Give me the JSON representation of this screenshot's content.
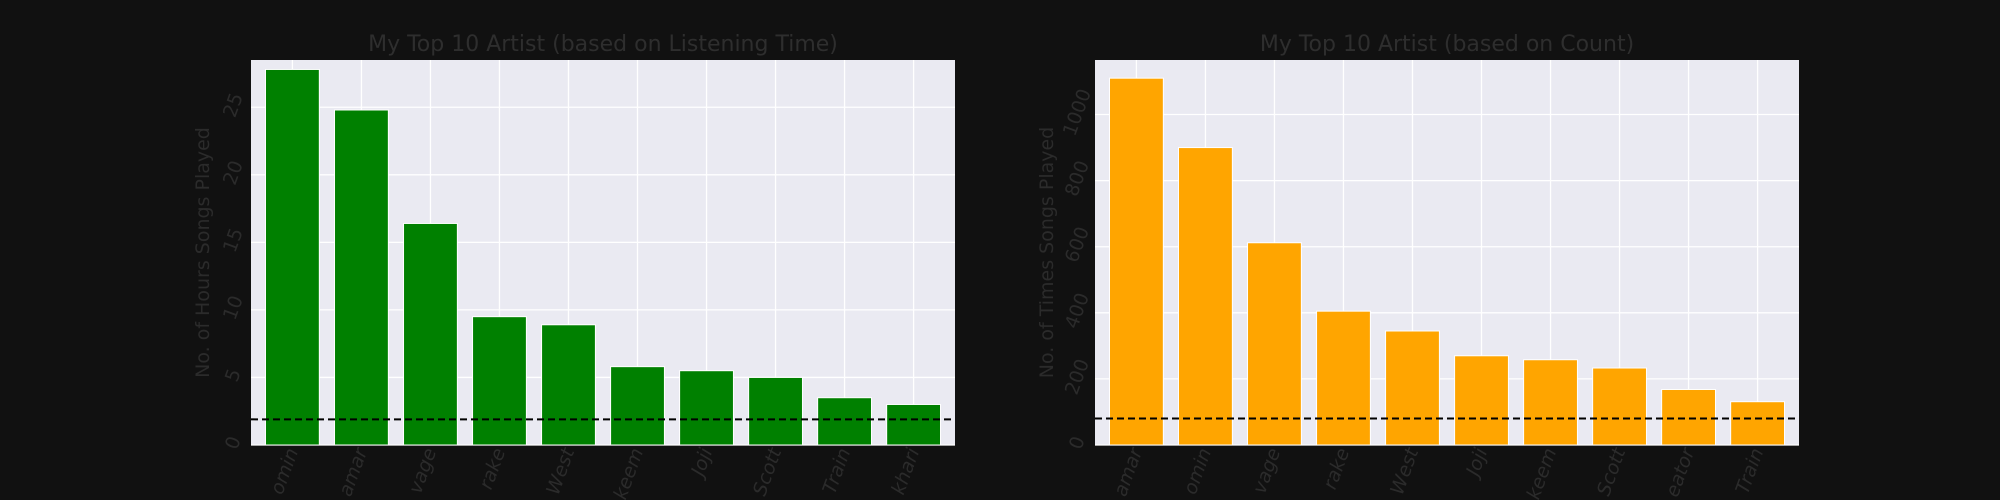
{
  "chart_data": [
    {
      "type": "bar",
      "title": "My Top 10 Artist (based on Listening Time)",
      "ylabel": "No. of Hours Songs Played",
      "xlabel": "",
      "categories": [
        "omin",
        "amar",
        "vage",
        "rake",
        "West",
        "keem",
        "Joji",
        "Scott",
        "Train",
        "khari"
      ],
      "values": [
        27.8,
        24.8,
        16.4,
        9.5,
        8.9,
        5.8,
        5.5,
        5.0,
        3.5,
        3.0
      ],
      "reference_line": 1.9,
      "ylim": [
        0,
        28.5
      ],
      "yticks": [
        0,
        5,
        10,
        15,
        20,
        25
      ],
      "grid": true,
      "color": "#008000"
    },
    {
      "type": "bar",
      "title": "My Top 10 Artist (based on Count)",
      "ylabel": "No. of Times Songs Played",
      "xlabel": "",
      "categories": [
        "amar",
        "omin",
        "vage",
        "rake",
        "West",
        "Joji",
        "keem",
        "Scott",
        "eator",
        "Train"
      ],
      "values": [
        1110,
        900,
        612,
        405,
        345,
        270,
        258,
        233,
        168,
        131
      ],
      "reference_line": 80,
      "ylim": [
        0,
        1165
      ],
      "yticks": [
        0,
        200,
        400,
        600,
        800,
        1000
      ],
      "grid": true,
      "color": "#FFA500"
    }
  ]
}
